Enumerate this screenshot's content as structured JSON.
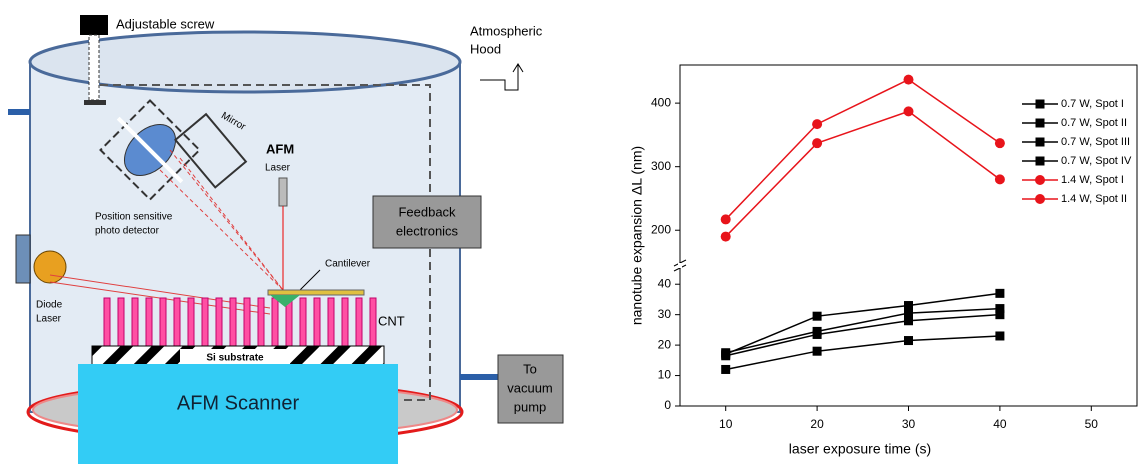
{
  "diagram": {
    "adjustable_screw": "Adjustable screw",
    "hood": [
      "Atmospheric",
      "Hood"
    ],
    "mirror": "Mirror",
    "afm": "AFM",
    "laser": "Laser",
    "detector": [
      "Position sensitive",
      "photo detector"
    ],
    "feedback": [
      "Feedback",
      "electronics"
    ],
    "cantilever": "Cantilever",
    "diode": [
      "Diode",
      "Laser"
    ],
    "cnt": "CNT",
    "substrate": "Si substrate",
    "scanner": "AFM Scanner",
    "pump": [
      "To",
      "vacuum",
      "pump"
    ]
  },
  "chart_data": {
    "type": "line",
    "x_label": "laser exposure time (s)",
    "y_label": "nanotube expansion ΔL (nm)",
    "x": [
      10,
      20,
      30,
      40
    ],
    "xlim": [
      5,
      55
    ],
    "xticks": [
      10,
      20,
      30,
      40,
      50
    ],
    "ylim": [
      0,
      45
    ],
    "yticks": [
      0,
      10,
      20,
      30,
      40
    ],
    "y2lim": [
      150,
      460
    ],
    "y2ticks": [
      200,
      300,
      400
    ],
    "series": [
      {
        "name": "0.7 W, Spot I",
        "color": "#000000",
        "marker": "square",
        "values": [
          17,
          29.5,
          33,
          37
        ]
      },
      {
        "name": "0.7 W, Spot II",
        "color": "#000000",
        "marker": "square",
        "values": [
          17.5,
          24.5,
          30.5,
          32
        ]
      },
      {
        "name": "0.7 W, Spot III",
        "color": "#000000",
        "marker": "square",
        "values": [
          16.5,
          23.5,
          28,
          30
        ]
      },
      {
        "name": "0.7 W, Spot IV",
        "color": "#000000",
        "marker": "square",
        "values": [
          12,
          18,
          21.5,
          23
        ]
      },
      {
        "name": "1.4 W, Spot I",
        "color": "#e8141b",
        "marker": "circle",
        "axis": "y2",
        "values": [
          217,
          367,
          437,
          337
        ]
      },
      {
        "name": "1.4 W, Spot II",
        "color": "#e8141b",
        "marker": "circle",
        "axis": "y2",
        "values": [
          190,
          337,
          387,
          280
        ]
      }
    ]
  }
}
